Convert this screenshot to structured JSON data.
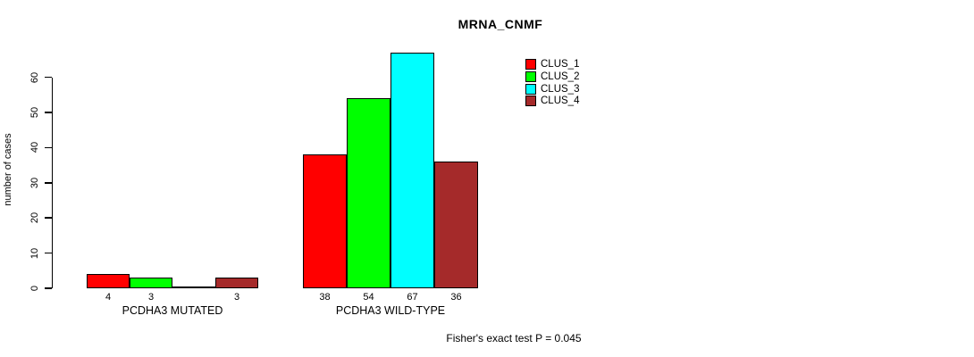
{
  "chart_data": {
    "type": "bar",
    "title": "MRNA_CNMF",
    "ylabel": "number of cases",
    "xlabel": "",
    "ylim": [
      0,
      67
    ],
    "y_ticks": [
      0,
      10,
      20,
      30,
      40,
      50,
      60
    ],
    "grid": false,
    "legend_position": "top-right",
    "categories": [
      "PCDHA3 MUTATED",
      "PCDHA3 WILD-TYPE"
    ],
    "series": [
      {
        "name": "CLUS_1",
        "color": "#FF0000",
        "values": [
          4,
          38
        ]
      },
      {
        "name": "CLUS_2",
        "color": "#00FF00",
        "values": [
          3,
          54
        ]
      },
      {
        "name": "CLUS_3",
        "color": "#00FFFF",
        "values": [
          0,
          67
        ]
      },
      {
        "name": "CLUS_4",
        "color": "#A52A2A",
        "values": [
          3,
          36
        ]
      }
    ],
    "bar_value_labels_shown": true,
    "zero_value_labels_hidden": true,
    "annotation": "Fisher's exact test P = 0.045"
  }
}
